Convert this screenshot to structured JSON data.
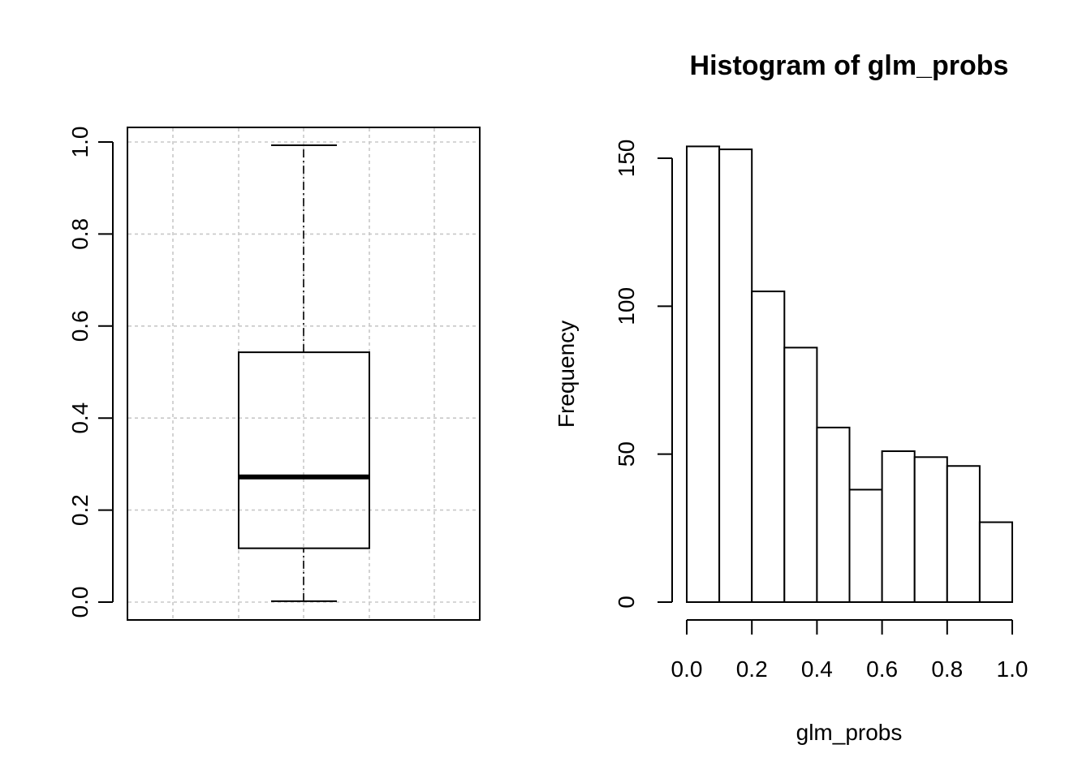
{
  "chart_data": [
    {
      "type": "box",
      "title": "",
      "xlabel": "",
      "ylabel": "",
      "ylim": [
        0,
        1
      ],
      "yticks": [
        "0.0",
        "0.2",
        "0.4",
        "0.6",
        "0.8",
        "1.0"
      ],
      "grid": true,
      "stats": {
        "min": 0.002,
        "q1": 0.117,
        "median": 0.272,
        "q3": 0.543,
        "max": 0.993
      }
    },
    {
      "type": "bar",
      "subtype": "histogram",
      "title": "Histogram of glm_probs",
      "xlabel": "glm_probs",
      "ylabel": "Frequency",
      "xlim": [
        0,
        1
      ],
      "ylim": [
        0,
        154
      ],
      "xticks": [
        "0.0",
        "0.2",
        "0.4",
        "0.6",
        "0.8",
        "1.0"
      ],
      "yticks": [
        "0",
        "50",
        "100",
        "150"
      ],
      "bins": [
        [
          0.0,
          0.1
        ],
        [
          0.1,
          0.2
        ],
        [
          0.2,
          0.3
        ],
        [
          0.3,
          0.4
        ],
        [
          0.4,
          0.5
        ],
        [
          0.5,
          0.6
        ],
        [
          0.6,
          0.7
        ],
        [
          0.7,
          0.8
        ],
        [
          0.8,
          0.9
        ],
        [
          0.9,
          1.0
        ]
      ],
      "values": [
        154,
        153,
        105,
        86,
        59,
        38,
        51,
        49,
        46,
        27
      ]
    }
  ]
}
